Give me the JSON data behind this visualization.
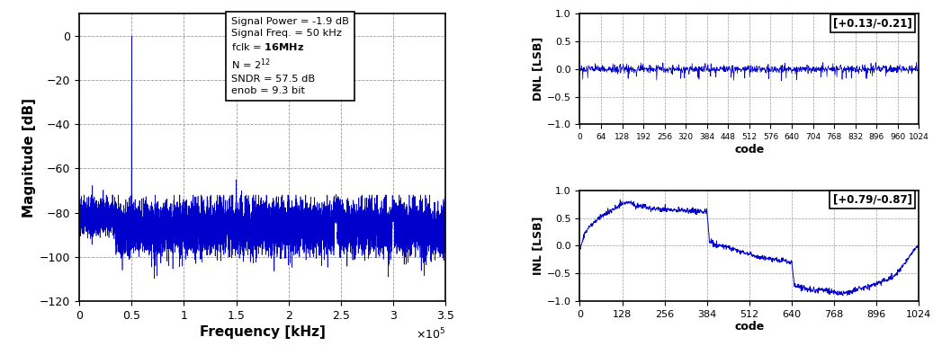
{
  "fft_xlim": [
    0,
    3.5
  ],
  "fft_ylim": [
    -120,
    10
  ],
  "fft_yticks": [
    0,
    -20,
    -40,
    -60,
    -80,
    -100,
    -120
  ],
  "fft_xticks": [
    0,
    0.5,
    1.0,
    1.5,
    2.0,
    2.5,
    3.0,
    3.5
  ],
  "fft_xticklabels": [
    "0",
    "0.5",
    "1",
    "1.5",
    "2",
    "2.5",
    "3",
    "3.5"
  ],
  "fft_xlabel": "Frequency [kHz]",
  "fft_ylabel": "Magnitude [dB]",
  "dnl_xlim": [
    0,
    1024
  ],
  "dnl_ylim": [
    -1,
    1
  ],
  "dnl_yticks": [
    -1,
    -0.5,
    0,
    0.5,
    1
  ],
  "dnl_xticks": [
    0,
    64,
    128,
    192,
    256,
    320,
    384,
    448,
    512,
    576,
    640,
    704,
    768,
    832,
    896,
    960,
    1024
  ],
  "dnl_xlabel": "code",
  "dnl_ylabel": "DNL [LSB]",
  "dnl_annotation": "[+0.13/-0.21]",
  "inl_xlim": [
    0,
    1024
  ],
  "inl_ylim": [
    -1,
    1
  ],
  "inl_yticks": [
    -1,
    -0.5,
    0,
    0.5,
    1
  ],
  "inl_xticks": [
    0,
    128,
    256,
    384,
    512,
    640,
    768,
    896,
    1024
  ],
  "inl_xlabel": "code",
  "inl_ylabel": "INL [LSB]",
  "inl_annotation": "[+0.79/-0.87]",
  "line_color": "#0000CC",
  "background_color": "#ffffff",
  "grid_color": "#808080",
  "text_color": "#000000",
  "ann_line1": "Signal Power = -1.9 dB",
  "ann_line2": "Signal Freq. = 50 kHz",
  "ann_line3": "fclk = 16MHz",
  "ann_line4": "N = 2",
  "ann_line5": "SNDR = 57.5 dB",
  "ann_line6": "enob = 9.3 bit"
}
